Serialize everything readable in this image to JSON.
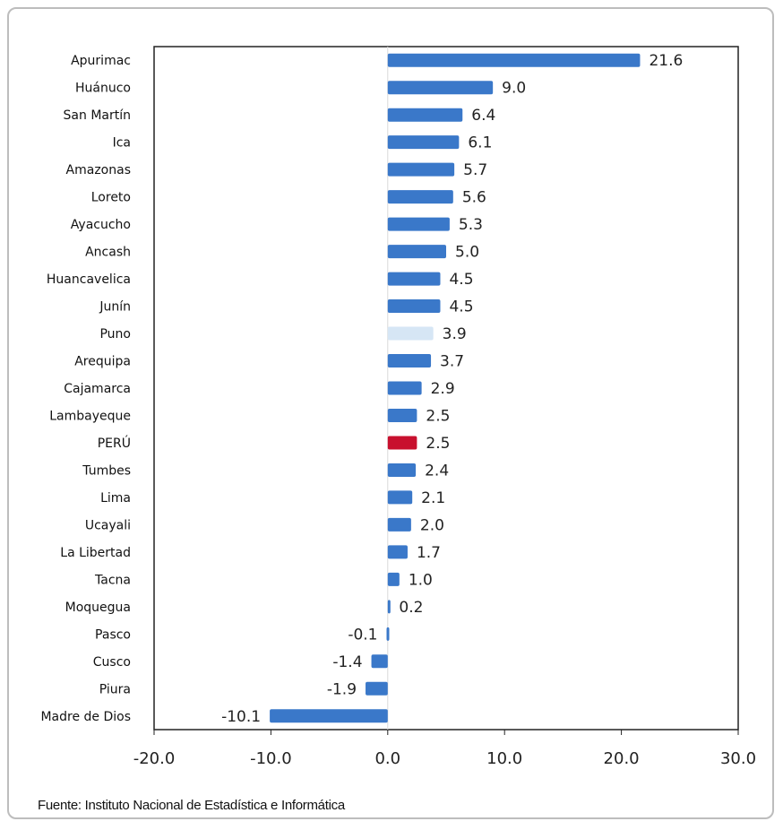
{
  "chart_data": {
    "type": "bar",
    "orientation": "horizontal",
    "categories": [
      "Apurimac",
      "Huánuco",
      "San Martín",
      "Ica",
      "Amazonas",
      "Loreto",
      "Ayacucho",
      "Ancash",
      "Huancavelica",
      "Junín",
      "Puno",
      "Arequipa",
      "Cajamarca",
      "Lambayeque",
      "PERÚ",
      "Tumbes",
      "Lima",
      "Ucayali",
      "La Libertad",
      "Tacna",
      "Moquegua",
      "Pasco",
      "Cusco",
      "Piura",
      "Madre de Dios"
    ],
    "values": [
      21.6,
      9.0,
      6.4,
      6.1,
      5.7,
      5.6,
      5.3,
      5.0,
      4.5,
      4.5,
      3.9,
      3.7,
      2.9,
      2.5,
      2.5,
      2.4,
      2.1,
      2.0,
      1.7,
      1.0,
      0.2,
      -0.1,
      -1.4,
      -1.9,
      -10.1
    ],
    "data_labels": [
      "21.6",
      "9.0",
      "6.4",
      "6.1",
      "5.7",
      "5.6",
      "5.3",
      "5.0",
      "4.5",
      "4.5",
      "3.9",
      "3.7",
      "2.9",
      "2.5",
      "2.5",
      "2.4",
      "2.1",
      "2.0",
      "1.7",
      "1.0",
      "0.2",
      "-0.1",
      "-1.4",
      "-1.9",
      "-10.1"
    ],
    "xlim": [
      -20,
      30
    ],
    "xticks": [
      "-20.0",
      "-10.0",
      "0.0",
      "10.0",
      "20.0",
      "30.0"
    ],
    "grid": false,
    "legend": "none",
    "colors": {
      "bar": "#3a78c9",
      "highlight": "#c8102e",
      "puno": "#d6e6f5"
    },
    "highlight_category": "PERÚ",
    "light_category": "Puno"
  },
  "footer": {
    "source": "Fuente: Instituto Nacional de Estadística e Informática"
  }
}
